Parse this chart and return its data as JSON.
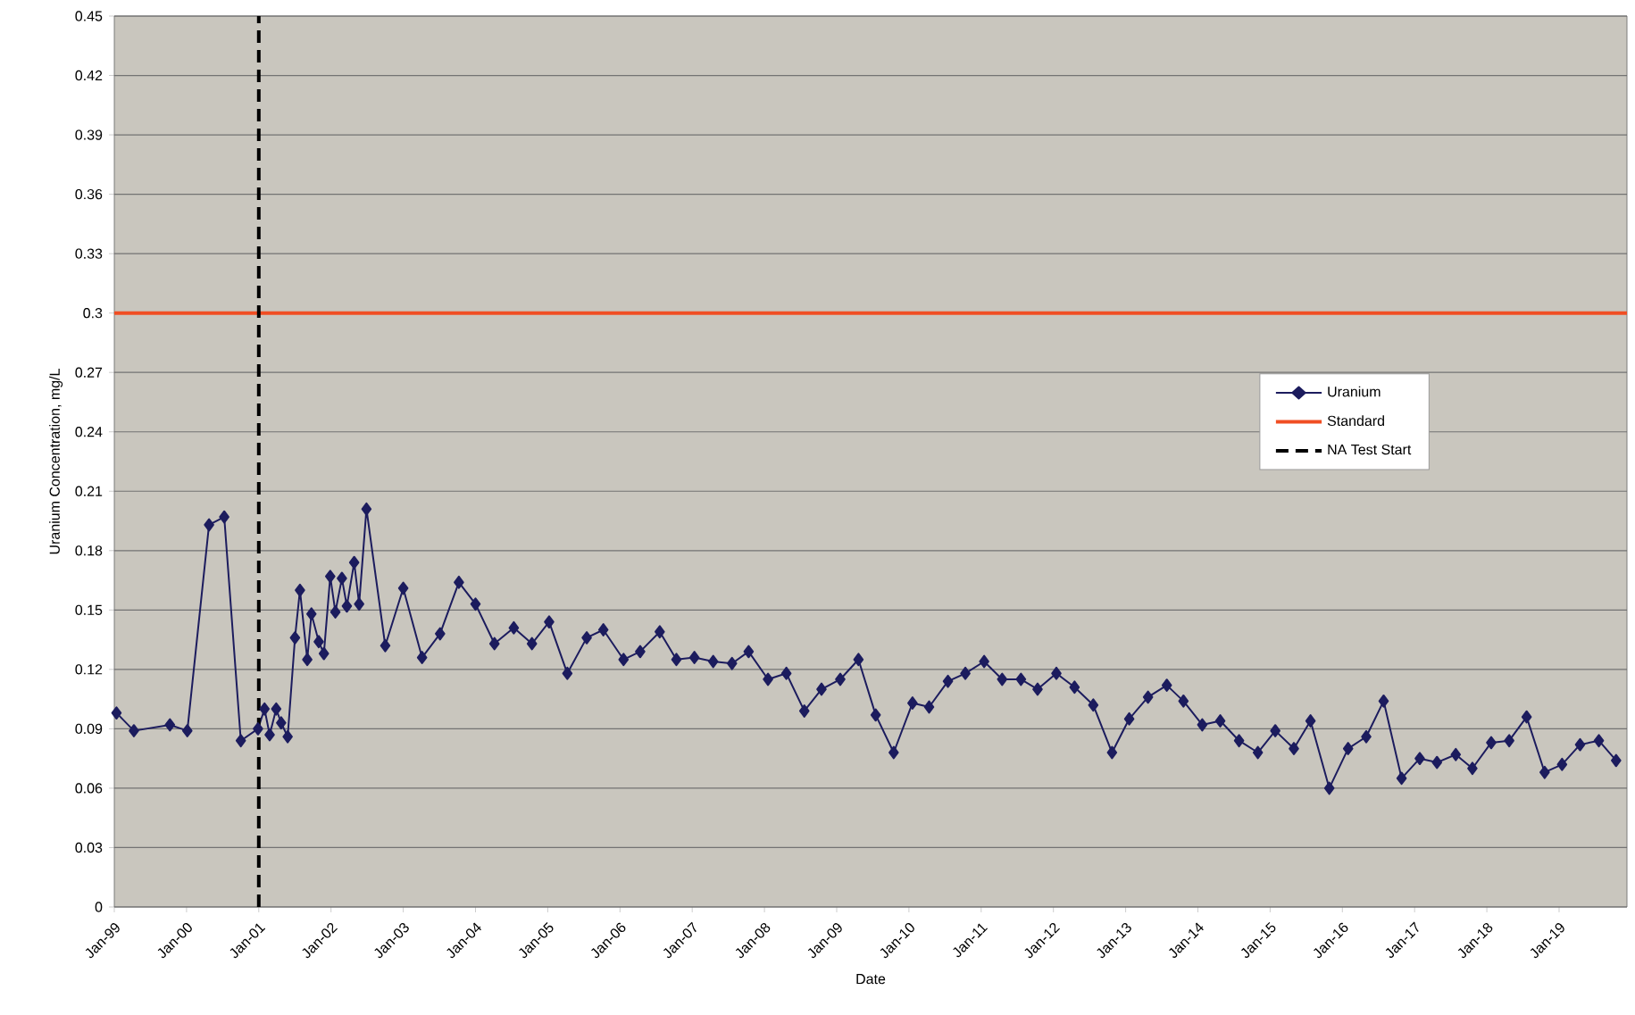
{
  "chart_data": {
    "type": "line",
    "xlabel": "Date",
    "ylabel": "Uranium Concentration, mg/L",
    "xlim": [
      "1999-01-01",
      "2019-12-10"
    ],
    "ylim": [
      0,
      0.45
    ],
    "xticks": [
      {
        "value": "1999-01",
        "label": "Jan-99"
      },
      {
        "value": "2000-01",
        "label": "Jan-00"
      },
      {
        "value": "2001-01",
        "label": "Jan-01"
      },
      {
        "value": "2002-01",
        "label": "Jan-02"
      },
      {
        "value": "2003-01",
        "label": "Jan-03"
      },
      {
        "value": "2004-01",
        "label": "Jan-04"
      },
      {
        "value": "2005-01",
        "label": "Jan-05"
      },
      {
        "value": "2006-01",
        "label": "Jan-06"
      },
      {
        "value": "2007-01",
        "label": "Jan-07"
      },
      {
        "value": "2008-01",
        "label": "Jan-08"
      },
      {
        "value": "2009-01",
        "label": "Jan-09"
      },
      {
        "value": "2010-01",
        "label": "Jan-10"
      },
      {
        "value": "2011-01",
        "label": "Jan-11"
      },
      {
        "value": "2012-01",
        "label": "Jan-12"
      },
      {
        "value": "2013-01",
        "label": "Jan-13"
      },
      {
        "value": "2014-01",
        "label": "Jan-14"
      },
      {
        "value": "2015-01",
        "label": "Jan-15"
      },
      {
        "value": "2016-01",
        "label": "Jan-16"
      },
      {
        "value": "2017-01",
        "label": "Jan-17"
      },
      {
        "value": "2018-01",
        "label": "Jan-18"
      },
      {
        "value": "2019-01",
        "label": "Jan-19"
      }
    ],
    "yticks": [
      0,
      0.03,
      0.06,
      0.09,
      0.12,
      0.15,
      0.18,
      0.21,
      0.24,
      0.27,
      0.3,
      0.33,
      0.36,
      0.39,
      0.42,
      0.45
    ],
    "grid": "y",
    "legend": "right",
    "marker": "diamond",
    "line_style": "solid",
    "series": [
      {
        "name": "Uranium",
        "color": "#1c1c5e",
        "x": [
          "1999-01-12",
          "1999-04-10",
          "1999-10-09",
          "2000-01-05",
          "2000-04-24",
          "2000-07-10",
          "2000-10-02",
          "2000-12-28",
          "2001-01-30",
          "2001-02-25",
          "2001-03-30",
          "2001-04-24",
          "2001-05-27",
          "2001-07-03",
          "2001-07-28",
          "2001-09-03",
          "2001-09-24",
          "2001-10-31",
          "2001-11-26",
          "2001-12-28",
          "2002-01-23",
          "2002-02-25",
          "2002-03-22",
          "2002-04-28",
          "2002-05-23",
          "2002-06-29",
          "2002-10-02",
          "2003-01-01",
          "2003-04-06",
          "2003-07-06",
          "2003-10-09",
          "2004-01-01",
          "2004-04-06",
          "2004-07-13",
          "2004-10-13",
          "2005-01-08",
          "2005-04-10",
          "2005-07-17",
          "2005-10-09",
          "2006-01-19",
          "2006-04-13",
          "2006-07-21",
          "2006-10-13",
          "2007-01-12",
          "2007-04-17",
          "2007-07-21",
          "2007-10-13",
          "2008-01-19",
          "2008-04-21",
          "2008-07-21",
          "2008-10-16",
          "2009-01-19",
          "2009-04-21",
          "2009-07-17",
          "2009-10-16",
          "2010-01-19",
          "2010-04-13",
          "2010-07-17",
          "2010-10-13",
          "2011-01-16",
          "2011-04-17",
          "2011-07-21",
          "2011-10-13",
          "2012-01-16",
          "2012-04-17",
          "2012-07-21",
          "2012-10-24",
          "2013-01-19",
          "2013-04-24",
          "2013-07-28",
          "2013-10-20",
          "2014-01-23",
          "2014-04-24",
          "2014-07-28",
          "2014-10-31",
          "2015-01-27",
          "2015-05-01",
          "2015-07-24",
          "2015-10-27",
          "2016-01-30",
          "2016-05-01",
          "2016-07-28",
          "2016-10-27",
          "2017-01-27",
          "2017-04-24",
          "2017-07-28",
          "2017-10-20",
          "2018-01-23",
          "2018-04-24",
          "2018-07-21",
          "2018-10-20",
          "2019-01-16",
          "2019-04-17",
          "2019-07-21",
          "2019-10-16"
        ],
        "values": [
          0.098,
          0.089,
          0.092,
          0.089,
          0.193,
          0.197,
          0.084,
          0.09,
          0.1,
          0.087,
          0.1,
          0.093,
          0.086,
          0.136,
          0.16,
          0.125,
          0.148,
          0.134,
          0.128,
          0.167,
          0.149,
          0.166,
          0.152,
          0.174,
          0.153,
          0.201,
          0.132,
          0.161,
          0.126,
          0.138,
          0.164,
          0.153,
          0.133,
          0.141,
          0.133,
          0.144,
          0.118,
          0.136,
          0.14,
          0.125,
          0.129,
          0.139,
          0.125,
          0.126,
          0.124,
          0.123,
          0.129,
          0.115,
          0.118,
          0.099,
          0.11,
          0.115,
          0.125,
          0.097,
          0.078,
          0.103,
          0.101,
          0.114,
          0.118,
          0.124,
          0.115,
          0.115,
          0.11,
          0.118,
          0.111,
          0.102,
          0.078,
          0.095,
          0.106,
          0.112,
          0.104,
          0.092,
          0.094,
          0.084,
          0.078,
          0.089,
          0.08,
          0.094,
          0.06,
          0.08,
          0.086,
          0.104,
          0.065,
          0.075,
          0.073,
          0.077,
          0.07,
          0.083,
          0.084,
          0.096,
          0.068,
          0.072,
          0.082,
          0.084,
          0.074
        ]
      }
    ],
    "ref_lines": [
      {
        "axis": "y",
        "value": 0.3,
        "label": "Standard",
        "color": "#f04e23",
        "line_style": "solid"
      },
      {
        "axis": "x",
        "value": "2001-01-01",
        "label": "NA Test Start",
        "color": "#000000",
        "line_style": "dashed"
      }
    ]
  }
}
